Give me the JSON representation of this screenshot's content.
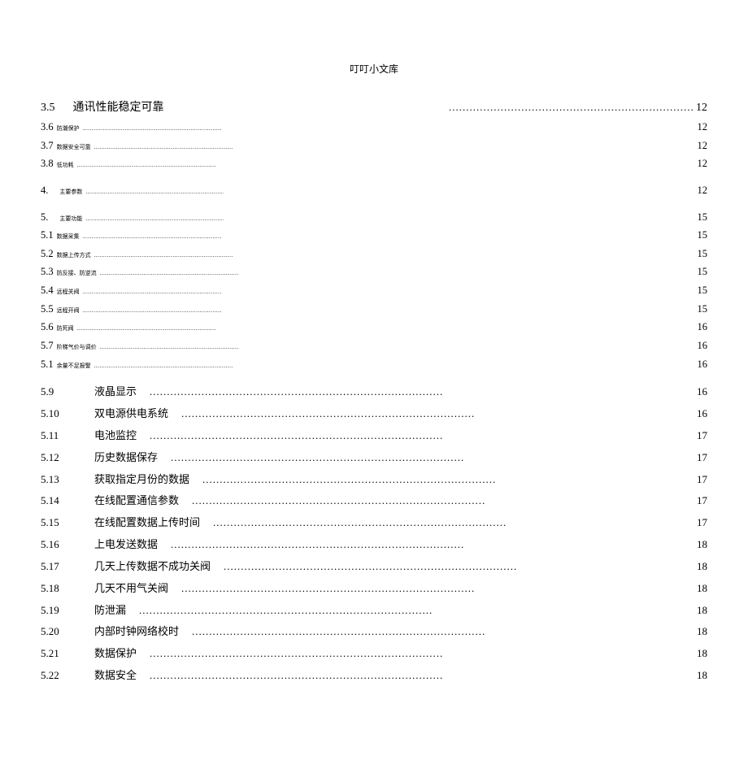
{
  "header": {
    "title": "叮叮小文库"
  },
  "toc": [
    {
      "style": "row35",
      "num": "3.5",
      "title": "通讯性能稳定可靠",
      "page": "12",
      "num_fs": "large",
      "title_fs": "norm"
    },
    {
      "style": "tiny",
      "num": "3.6",
      "title": "防潮保护",
      "page": "12"
    },
    {
      "style": "tiny",
      "num": "3.7",
      "title": "数据安全可靠",
      "page": "12"
    },
    {
      "style": "tiny",
      "num": "3.8",
      "title": "低功耗",
      "page": "12"
    },
    {
      "style": "gap"
    },
    {
      "style": "tiny-wide",
      "num": "4.",
      "title": "主要参数",
      "page": "12"
    },
    {
      "style": "gap"
    },
    {
      "style": "tiny-wide",
      "num": "5.",
      "title": "主要功能",
      "page": "15"
    },
    {
      "style": "tiny",
      "num": "5.1",
      "title": "数据采集",
      "page": "15"
    },
    {
      "style": "tiny",
      "num": "5.2",
      "title": "数据上传方式",
      "page": "15"
    },
    {
      "style": "tiny",
      "num": "5.3",
      "title": "防反接、防逆流",
      "page": "15"
    },
    {
      "style": "tiny",
      "num": "5.4",
      "title": "远程关阀",
      "page": "15"
    },
    {
      "style": "tiny",
      "num": "5.5",
      "title": "远程开阀",
      "page": "15"
    },
    {
      "style": "tiny",
      "num": "5.6",
      "title": "防死阀",
      "page": "16"
    },
    {
      "style": "tiny",
      "num": "5.7",
      "title": "阶梯气价与调价",
      "page": "16"
    },
    {
      "style": "tiny",
      "num": "5.1",
      "title": "余量不足报警",
      "page": "16"
    },
    {
      "style": "gap"
    },
    {
      "style": "med",
      "num": "5.9",
      "title": "液晶显示",
      "page": "16"
    },
    {
      "style": "med",
      "num": "5.10",
      "title": "双电源供电系统",
      "page": "16"
    },
    {
      "style": "med",
      "num": "5.11",
      "title": "电池监控",
      "page": "17"
    },
    {
      "style": "med",
      "num": "5.12",
      "title": "历史数据保存",
      "page": "17"
    },
    {
      "style": "med",
      "num": "5.13",
      "title": "获取指定月份的数据",
      "page": "17"
    },
    {
      "style": "med",
      "num": "5.14",
      "title": "在线配置通信参数",
      "page": "17"
    },
    {
      "style": "med",
      "num": "5.15",
      "title": "在线配置数据上传时间",
      "page": "17"
    },
    {
      "style": "med",
      "num": "5.16",
      "title": "上电发送数据",
      "page": "18"
    },
    {
      "style": "med",
      "num": "5.17",
      "title": "几天上传数据不成功关阀",
      "page": "18"
    },
    {
      "style": "med",
      "num": "5.18",
      "title": "几天不用气关阀",
      "page": "18"
    },
    {
      "style": "med",
      "num": "5.19",
      "title": "防泄漏",
      "page": "18"
    },
    {
      "style": "med",
      "num": "5.20",
      "title": "内部时钟网络校时",
      "page": "18"
    },
    {
      "style": "med",
      "num": "5.21",
      "title": "数据保护",
      "page": "18"
    },
    {
      "style": "med",
      "num": "5.22",
      "title": "数据安全",
      "page": "18"
    }
  ],
  "style": {
    "page_bg": "#ffffff",
    "body_bg": "#8a8a8a",
    "text_color": "#000000",
    "font_family": "SimSun",
    "large_fs": 14,
    "med_fs": 13,
    "small_fs": 12.5,
    "tiny_fs": 7
  }
}
